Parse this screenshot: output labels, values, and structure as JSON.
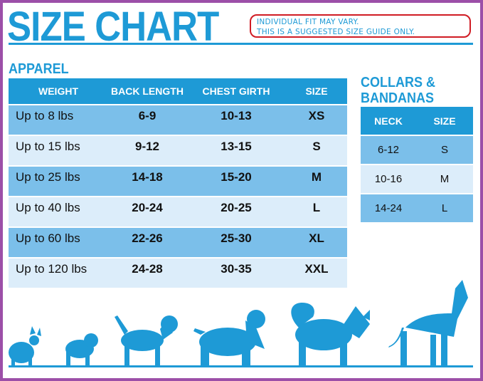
{
  "title": "SIZE CHART",
  "note": [
    "INDIVIDUAL FIT MAY VARY.",
    "THIS IS A SUGGESTED SIZE GUIDE ONLY."
  ],
  "apparel": {
    "heading": "APPAREL",
    "headers": [
      "WEIGHT",
      "BACK LENGTH",
      "CHEST GIRTH",
      "SIZE"
    ],
    "rows": [
      [
        "Up to 8 lbs",
        "6-9",
        "10-13",
        "XS"
      ],
      [
        "Up to 15 lbs",
        "9-12",
        "13-15",
        "S"
      ],
      [
        "Up to 25 lbs",
        "14-18",
        "15-20",
        "M"
      ],
      [
        "Up to 40 lbs",
        "20-24",
        "20-25",
        "L"
      ],
      [
        "Up to 60 lbs",
        "22-26",
        "25-30",
        "XL"
      ],
      [
        "Up to 120 lbs",
        "24-28",
        "30-35",
        "XXL"
      ]
    ]
  },
  "collars": {
    "heading": [
      "COLLARS &",
      "BANDANAS"
    ],
    "headers": [
      "NECK",
      "SIZE"
    ],
    "rows": [
      [
        "6-12",
        "S"
      ],
      [
        "10-16",
        "M"
      ],
      [
        "14-24",
        "L"
      ]
    ]
  },
  "colors": {
    "brand": "#1e9ad6",
    "row_dark": "#7bbfea",
    "row_light": "#dcedfa",
    "border": "#9c4fa8",
    "note_outline": "#d01c24"
  }
}
